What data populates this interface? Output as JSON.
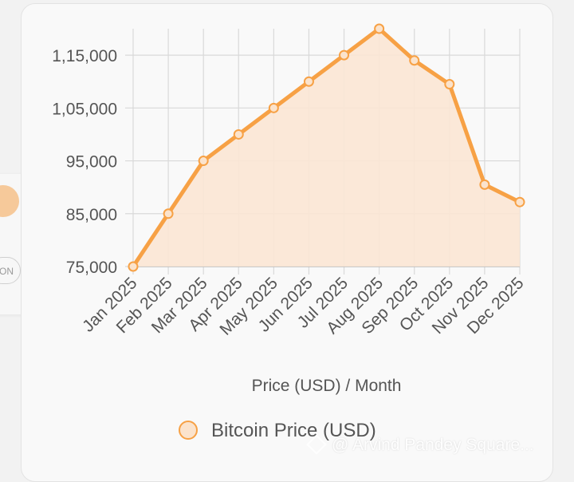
{
  "chart_data": {
    "type": "area",
    "categories": [
      "Jan 2025",
      "Feb 2025",
      "Mar 2025",
      "Apr 2025",
      "May 2025",
      "Jun 2025",
      "Jul 2025",
      "Aug 2025",
      "Sep 2025",
      "Oct 2025",
      "Nov 2025",
      "Dec 2025"
    ],
    "series": [
      {
        "name": "Bitcoin Price (USD)",
        "values": [
          75000,
          85000,
          95000,
          100000,
          105000,
          110000,
          115000,
          120000,
          114000,
          109500,
          90500,
          87200
        ]
      }
    ],
    "xlabel": "Price (USD) / Month",
    "ylabel": "",
    "ylim": [
      75000,
      120000
    ],
    "yticks": [
      75000,
      85000,
      95000,
      105000,
      115000
    ],
    "ytick_labels": [
      "75,000",
      "85,000",
      "95,000",
      "1,05,000",
      "1,15,000"
    ],
    "grid": true,
    "legend_position": "bottom",
    "colors": {
      "line": "#f7a145",
      "fill": "#fbe6d4",
      "marker_fill": "#fbe3cc",
      "grid": "#d9d9d9",
      "axis": "#bdbdbd",
      "text": "#555555"
    }
  },
  "side_card": {
    "button_label": "ON"
  },
  "watermark": {
    "text": "@ Arvind Pandey Square..."
  }
}
